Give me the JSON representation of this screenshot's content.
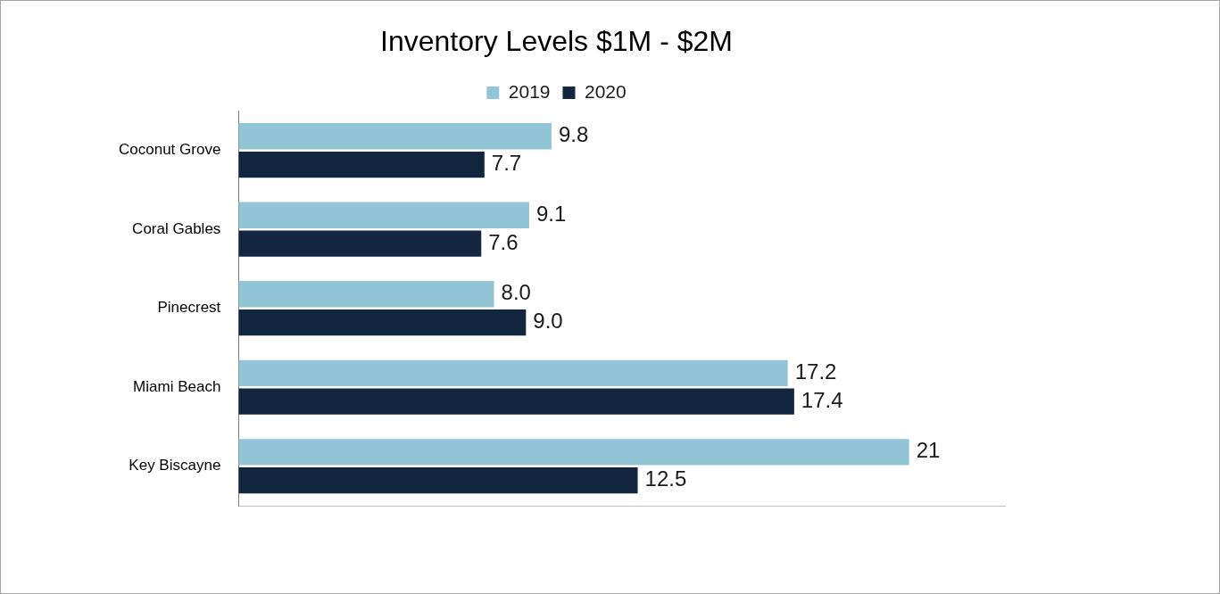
{
  "chart_data": {
    "type": "bar",
    "title": "Inventory Levels $1M - $2M",
    "orientation": "horizontal",
    "categories": [
      "Coconut Grove",
      "Coral Gables",
      "Pinecrest",
      "Miami Beach",
      "Key Biscayne"
    ],
    "series": [
      {
        "name": "2019",
        "color": "#92c5d6",
        "values": [
          9.8,
          9.1,
          8.0,
          17.2,
          21
        ],
        "value_labels": [
          "9.8",
          "9.1",
          "8.0",
          "17.2",
          "21"
        ]
      },
      {
        "name": "2020",
        "color": "#12263f",
        "values": [
          7.7,
          7.6,
          9.0,
          17.4,
          12.5
        ],
        "value_labels": [
          "7.7",
          "7.6",
          "9.0",
          "17.4",
          "12.5"
        ]
      }
    ],
    "xlim": [
      0,
      24
    ],
    "grid": false,
    "legend": "top",
    "data_labels": true,
    "tick_labels": "y"
  }
}
